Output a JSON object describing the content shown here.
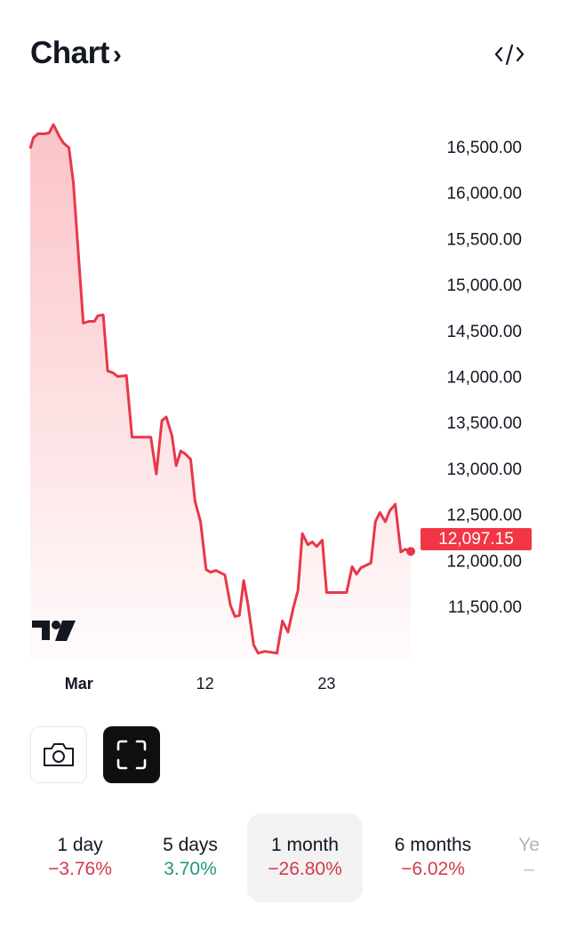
{
  "header": {
    "title": "Chart",
    "chevron": "›",
    "embed_icon": "code-icon"
  },
  "price_tag": "12,097.15",
  "colors": {
    "line": "#f23645",
    "negative": "#d33a4a",
    "positive": "#22977f",
    "selected_tab_bg": "#f2f2f2"
  },
  "chart_data": {
    "type": "area",
    "title": "",
    "xlabel": "",
    "ylabel": "",
    "x_unit": "day of March",
    "xlim": [
      -3.8,
      30.6
    ],
    "ylim": [
      10950,
      16800
    ],
    "xticks": [
      {
        "label": "Mar",
        "day": 1
      },
      {
        "label": "12",
        "day": 12
      },
      {
        "label": "23",
        "day": 23
      }
    ],
    "yticks": [
      "16,500.00",
      "16,000.00",
      "15,500.00",
      "15,000.00",
      "14,500.00",
      "14,000.00",
      "13,500.00",
      "13,000.00",
      "12,500.00",
      "12,000.00",
      "11,500.00"
    ],
    "ytick_values": [
      16500,
      16000,
      15500,
      15000,
      14500,
      14000,
      13500,
      13000,
      12500,
      12000,
      11500
    ],
    "grid": false,
    "last_value": 12097.15,
    "x": [
      -3.8,
      -3.5,
      -3.1,
      -2.5,
      -2.1,
      -1.7,
      -1.2,
      -0.8,
      -0.3,
      0.1,
      1.0,
      1.5,
      2.0,
      2.3,
      2.8,
      3.2,
      3.7,
      4.1,
      4.9,
      5.4,
      7.1,
      7.6,
      8.1,
      8.5,
      9.0,
      9.4,
      9.8,
      10.2,
      10.7,
      11.1,
      11.6,
      12.1,
      12.5,
      13.0,
      13.8,
      14.3,
      14.7,
      15.1,
      15.5,
      15.9,
      16.4,
      16.8,
      17.4,
      18.5,
      19.0,
      19.5,
      20.0,
      20.4,
      20.8,
      21.3,
      21.7,
      22.1,
      22.6,
      23.0,
      24.8,
      25.3,
      25.7,
      26.1,
      27.0,
      27.4,
      27.8,
      28.3,
      28.7,
      29.2,
      29.7,
      30.1,
      30.6
    ],
    "values": [
      16480,
      16600,
      16640,
      16640,
      16650,
      16740,
      16620,
      16540,
      16490,
      16110,
      14580,
      14600,
      14600,
      14660,
      14670,
      14060,
      14040,
      14000,
      14010,
      13340,
      13340,
      12940,
      13520,
      13560,
      13360,
      13030,
      13190,
      13160,
      13100,
      12640,
      12420,
      11900,
      11870,
      11890,
      11840,
      11510,
      11390,
      11400,
      11780,
      11510,
      11080,
      10990,
      11010,
      10990,
      11340,
      11220,
      11490,
      11670,
      12290,
      12170,
      12200,
      12150,
      12220,
      11650,
      11650,
      11930,
      11850,
      11920,
      11970,
      12420,
      12520,
      12420,
      12540,
      12610,
      12090,
      12120,
      12097.15
    ]
  },
  "actions": {
    "camera_icon": "camera-icon",
    "fullscreen_icon": "fullscreen-icon"
  },
  "periods": [
    {
      "label": "1 day",
      "change": "−3.76%",
      "dir": "neg"
    },
    {
      "label": "5 days",
      "change": "3.70%",
      "dir": "pos"
    },
    {
      "label": "1 month",
      "change": "−26.80%",
      "dir": "neg",
      "selected": true
    },
    {
      "label": "6 months",
      "change": "−6.02%",
      "dir": "neg"
    },
    {
      "label": "Ye",
      "change": "–",
      "dir": "neg"
    }
  ]
}
